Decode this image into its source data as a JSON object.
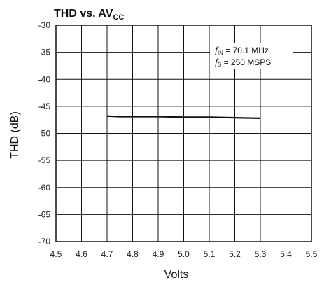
{
  "chart_data": {
    "type": "line",
    "title": {
      "main": "THD vs. AV",
      "subscript": "CC"
    },
    "xlabel": "Volts",
    "ylabel": "THD (dB)",
    "xlim": [
      4.5,
      5.5
    ],
    "ylim": [
      -70,
      -30
    ],
    "x_ticks": [
      "4.5",
      "4.6",
      "4.7",
      "4.8",
      "4.9",
      "5.0",
      "5.1",
      "5.2",
      "5.3",
      "5.4",
      "5.5"
    ],
    "y_ticks": [
      "-30",
      "-35",
      "-40",
      "-45",
      "-50",
      "-55",
      "-60",
      "-65",
      "-70"
    ],
    "x_tick_values": [
      4.5,
      4.6,
      4.7,
      4.8,
      4.9,
      5.0,
      5.1,
      5.2,
      5.3,
      5.4,
      5.5
    ],
    "y_tick_values": [
      -30,
      -35,
      -40,
      -45,
      -50,
      -55,
      -60,
      -65,
      -70
    ],
    "grid": true,
    "annotation": {
      "line1": {
        "symbol": "f",
        "subscript": "IN",
        "text": " = 70.1 MHz"
      },
      "line2": {
        "symbol": "f",
        "subscript": "S",
        "text": " = 250 MSPS"
      }
    },
    "series": [
      {
        "color": "#111111",
        "x": [
          4.7,
          4.75,
          4.8,
          4.9,
          5.0,
          5.1,
          5.2,
          5.3
        ],
        "y": [
          -46.8,
          -46.9,
          -46.9,
          -46.9,
          -47.0,
          -47.0,
          -47.1,
          -47.2
        ]
      }
    ]
  }
}
